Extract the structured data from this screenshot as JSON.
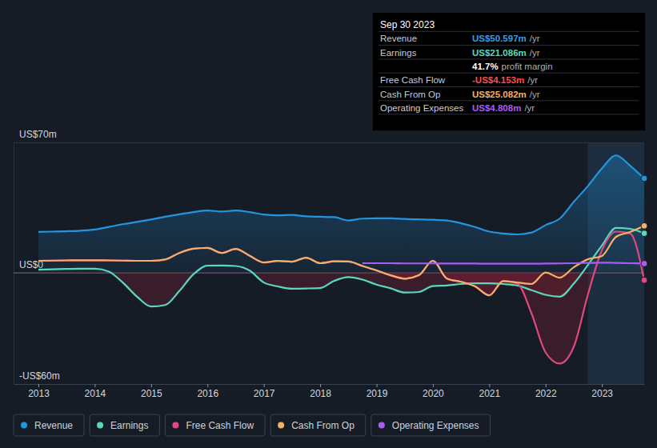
{
  "chart_data": {
    "type": "line",
    "x": [
      2013,
      2013.25,
      2013.5,
      2013.75,
      2014,
      2014.25,
      2014.5,
      2014.75,
      2015,
      2015.25,
      2015.5,
      2015.75,
      2016,
      2016.25,
      2016.5,
      2016.75,
      2017,
      2017.25,
      2017.5,
      2017.75,
      2018,
      2018.25,
      2018.5,
      2018.75,
      2019,
      2019.25,
      2019.5,
      2019.75,
      2020,
      2020.25,
      2020.5,
      2020.75,
      2021,
      2021.25,
      2021.5,
      2021.75,
      2022,
      2022.25,
      2022.5,
      2022.75,
      2023,
      2023.25,
      2023.5,
      2023.75
    ],
    "series": [
      {
        "name": "Revenue",
        "color": "#2394df",
        "type": "area",
        "values": [
          21.8,
          22.0,
          22.2,
          22.5,
          23.1,
          24.5,
          26.0,
          27.2,
          28.5,
          30.0,
          31.3,
          32.5,
          33.4,
          32.8,
          33.4,
          32.5,
          31.2,
          30.8,
          31.0,
          30.2,
          30.0,
          29.8,
          28.0,
          29.0,
          29.2,
          29.2,
          28.8,
          28.6,
          28.4,
          28.0,
          26.5,
          24.5,
          22.0,
          21.0,
          20.5,
          21.5,
          25.5,
          29.0,
          38.0,
          46.5,
          56.0,
          63.0,
          57.5,
          50.597
        ]
      },
      {
        "name": "Earnings",
        "color": "#58d8bd",
        "values": [
          1.5,
          1.7,
          1.9,
          2.0,
          2.0,
          0.5,
          -5.5,
          -13.0,
          -18.3,
          -17.5,
          -10.0,
          -1.0,
          3.7,
          3.8,
          3.5,
          1.0,
          -5.4,
          -7.5,
          -8.7,
          -8.6,
          -8.4,
          -4.5,
          -2.5,
          -3.8,
          -6.5,
          -8.5,
          -10.8,
          -10.5,
          -7.3,
          -7.0,
          -6.2,
          -5.8,
          -5.8,
          -6.2,
          -7.0,
          -9.5,
          -12.0,
          -13.0,
          -6.0,
          4.0,
          14.5,
          24.0,
          23.5,
          21.086
        ]
      },
      {
        "name": "Free Cash Flow",
        "color": "#e0487f",
        "values": [
          6.3,
          6.4,
          6.5,
          6.6,
          6.6,
          6.5,
          6.4,
          6.3,
          6.3,
          7.0,
          10.5,
          12.8,
          13.2,
          10.5,
          12.7,
          9.0,
          5.4,
          6.2,
          5.8,
          8.0,
          5.0,
          6.0,
          5.9,
          3.5,
          1.1,
          -1.5,
          -3.3,
          -1.5,
          6.3,
          -3.3,
          -5.0,
          -7.5,
          -12.3,
          -4.6,
          -6.0,
          -22.0,
          -43.0,
          -49.0,
          -40.0,
          -12.0,
          12.0,
          22.0,
          21.0,
          -4.153
        ]
      },
      {
        "name": "Cash From Op",
        "color": "#f2b06a",
        "values": [
          6.3,
          6.4,
          6.5,
          6.6,
          6.6,
          6.5,
          6.4,
          6.3,
          6.3,
          7.0,
          10.5,
          12.8,
          13.2,
          10.5,
          12.7,
          9.0,
          5.4,
          6.2,
          5.8,
          8.0,
          5.0,
          6.0,
          5.9,
          3.5,
          1.1,
          -1.5,
          -3.3,
          -1.5,
          6.3,
          -3.3,
          -5.0,
          -7.5,
          -12.3,
          -4.6,
          -5.4,
          -6.2,
          0.0,
          -2.8,
          2.8,
          7.1,
          8.9,
          19.2,
          21.8,
          25.082
        ]
      },
      {
        "name": "Operating Expenses",
        "color": "#a95cf0",
        "values": [
          null,
          null,
          null,
          null,
          null,
          null,
          null,
          null,
          null,
          null,
          null,
          null,
          null,
          null,
          null,
          null,
          null,
          null,
          null,
          null,
          null,
          null,
          null,
          5.0,
          5.0,
          5.0,
          4.9,
          4.9,
          4.9,
          4.8,
          4.8,
          4.8,
          4.7,
          4.7,
          4.7,
          4.7,
          4.8,
          4.9,
          5.0,
          5.2,
          5.3,
          5.2,
          5.0,
          4.808
        ]
      }
    ],
    "xlim": [
      2012.56,
      2023.75
    ],
    "xticks": [
      2013,
      2014,
      2015,
      2016,
      2017,
      2018,
      2019,
      2020,
      2021,
      2022,
      2023
    ],
    "ylim": [
      -60,
      70
    ],
    "yticks": [
      {
        "value": -60,
        "label": "-US$60m"
      },
      {
        "value": 0,
        "label": "US$0"
      },
      {
        "value": 70,
        "label": "US$70m"
      }
    ],
    "grid": true,
    "legend": "bottom-left",
    "highlight_x": [
      2022.75,
      2023.75
    ],
    "tooltip": {
      "title": "Sep 30 2023",
      "rows": [
        {
          "label": "Revenue",
          "value": "US$50.597m",
          "unit": "/yr",
          "color": "#3a9ce6"
        },
        {
          "label": "Earnings",
          "value": "US$21.086m",
          "unit": "/yr",
          "color": "#58d8bd"
        },
        {
          "value": "41.7%",
          "unit": "profit margin",
          "color": "#ffffff"
        },
        {
          "label": "Free Cash Flow",
          "value": "-US$4.153m",
          "unit": "/yr",
          "color": "#ff4d4d"
        },
        {
          "label": "Cash From Op",
          "value": "US$25.082m",
          "unit": "/yr",
          "color": "#f2b06a"
        },
        {
          "label": "Operating Expenses",
          "value": "US$4.808m",
          "unit": "/yr",
          "color": "#a95cf0"
        }
      ]
    }
  }
}
